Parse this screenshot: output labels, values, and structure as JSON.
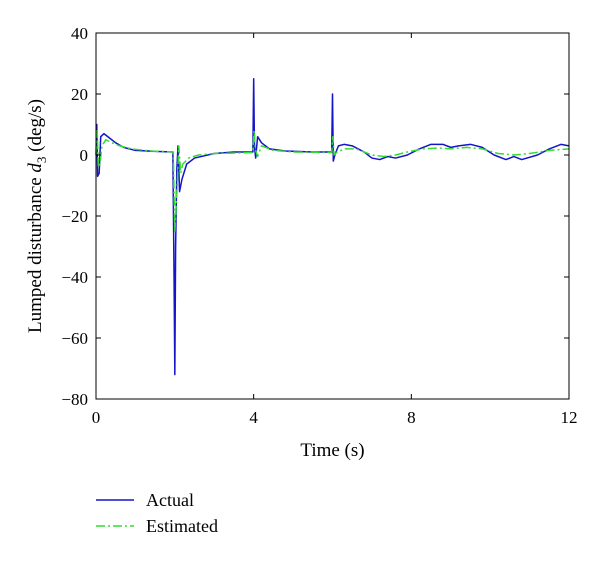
{
  "chart_data": {
    "type": "line",
    "title": "",
    "xlabel": "Time (s)",
    "ylabel_prefix": "Lumped disturbance ",
    "ylabel_var": "d",
    "ylabel_sub": "3",
    "ylabel_suffix": " (deg/s)",
    "xlim": [
      0,
      12
    ],
    "ylim": [
      -80,
      40
    ],
    "x_ticks": [
      0,
      4,
      8,
      12
    ],
    "y_ticks": [
      40,
      20,
      0,
      -20,
      -40,
      -60,
      -80
    ],
    "grid": false,
    "legend_placement": "bottom-left, below plot",
    "series": [
      {
        "name": "Actual",
        "color": "#1414c8",
        "style": "solid",
        "points": [
          [
            0,
            0
          ],
          [
            0.02,
            10
          ],
          [
            0.04,
            -7
          ],
          [
            0.08,
            -6
          ],
          [
            0.12,
            6
          ],
          [
            0.2,
            7
          ],
          [
            0.35,
            5.5
          ],
          [
            0.5,
            4
          ],
          [
            0.7,
            2.5
          ],
          [
            1.0,
            1.5
          ],
          [
            1.5,
            1.2
          ],
          [
            1.95,
            1.0
          ],
          [
            1.98,
            -40
          ],
          [
            2.0,
            -72
          ],
          [
            2.02,
            -30
          ],
          [
            2.05,
            -5
          ],
          [
            2.08,
            3
          ],
          [
            2.12,
            -12
          ],
          [
            2.18,
            -8
          ],
          [
            2.3,
            -3
          ],
          [
            2.5,
            -1
          ],
          [
            3.0,
            0.5
          ],
          [
            3.5,
            1.0
          ],
          [
            3.98,
            1.0
          ],
          [
            4.0,
            25
          ],
          [
            4.02,
            3
          ],
          [
            4.05,
            -1
          ],
          [
            4.1,
            6
          ],
          [
            4.2,
            4
          ],
          [
            4.4,
            2
          ],
          [
            4.8,
            1.3
          ],
          [
            5.5,
            1.0
          ],
          [
            5.98,
            1.0
          ],
          [
            6.0,
            20
          ],
          [
            6.02,
            -2
          ],
          [
            6.06,
            0
          ],
          [
            6.15,
            3
          ],
          [
            6.3,
            3.5
          ],
          [
            6.5,
            3
          ],
          [
            6.8,
            1
          ],
          [
            7.0,
            -1
          ],
          [
            7.2,
            -1.5
          ],
          [
            7.4,
            -0.5
          ],
          [
            7.6,
            -1
          ],
          [
            7.9,
            0
          ],
          [
            8.2,
            2
          ],
          [
            8.5,
            3.5
          ],
          [
            8.8,
            3.5
          ],
          [
            9.0,
            2.5
          ],
          [
            9.2,
            3
          ],
          [
            9.5,
            3.5
          ],
          [
            9.8,
            2.5
          ],
          [
            10.1,
            0
          ],
          [
            10.4,
            -1.5
          ],
          [
            10.6,
            -0.5
          ],
          [
            10.8,
            -1.5
          ],
          [
            11.2,
            0
          ],
          [
            11.5,
            2
          ],
          [
            11.8,
            3.5
          ],
          [
            12.0,
            3
          ]
        ]
      },
      {
        "name": "Estimated",
        "color": "#32dc32",
        "style": "dashdot",
        "points": [
          [
            0,
            0
          ],
          [
            0.03,
            8
          ],
          [
            0.06,
            -4
          ],
          [
            0.1,
            -3
          ],
          [
            0.15,
            3
          ],
          [
            0.25,
            5
          ],
          [
            0.4,
            4
          ],
          [
            0.6,
            3
          ],
          [
            0.9,
            2
          ],
          [
            1.4,
            1.3
          ],
          [
            1.96,
            1.0
          ],
          [
            2.0,
            -25
          ],
          [
            2.03,
            -18
          ],
          [
            2.06,
            -10
          ],
          [
            2.1,
            3
          ],
          [
            2.15,
            -6
          ],
          [
            2.2,
            -3
          ],
          [
            2.35,
            -1
          ],
          [
            2.6,
            0
          ],
          [
            3.0,
            0.5
          ],
          [
            3.98,
            0.8
          ],
          [
            4.01,
            8
          ],
          [
            4.04,
            2
          ],
          [
            4.1,
            -0.5
          ],
          [
            4.2,
            3
          ],
          [
            4.5,
            1.5
          ],
          [
            5.0,
            1.0
          ],
          [
            5.98,
            0.8
          ],
          [
            6.01,
            6
          ],
          [
            6.04,
            0
          ],
          [
            6.12,
            1
          ],
          [
            6.3,
            2
          ],
          [
            6.6,
            2
          ],
          [
            7.0,
            0
          ],
          [
            7.3,
            -0.5
          ],
          [
            7.6,
            0
          ],
          [
            7.9,
            1
          ],
          [
            8.3,
            2
          ],
          [
            8.7,
            2.3
          ],
          [
            9.0,
            2
          ],
          [
            9.4,
            2.5
          ],
          [
            9.8,
            2
          ],
          [
            10.2,
            0.5
          ],
          [
            10.6,
            0
          ],
          [
            11.0,
            0.5
          ],
          [
            11.5,
            1.5
          ],
          [
            12.0,
            2
          ]
        ]
      }
    ]
  }
}
